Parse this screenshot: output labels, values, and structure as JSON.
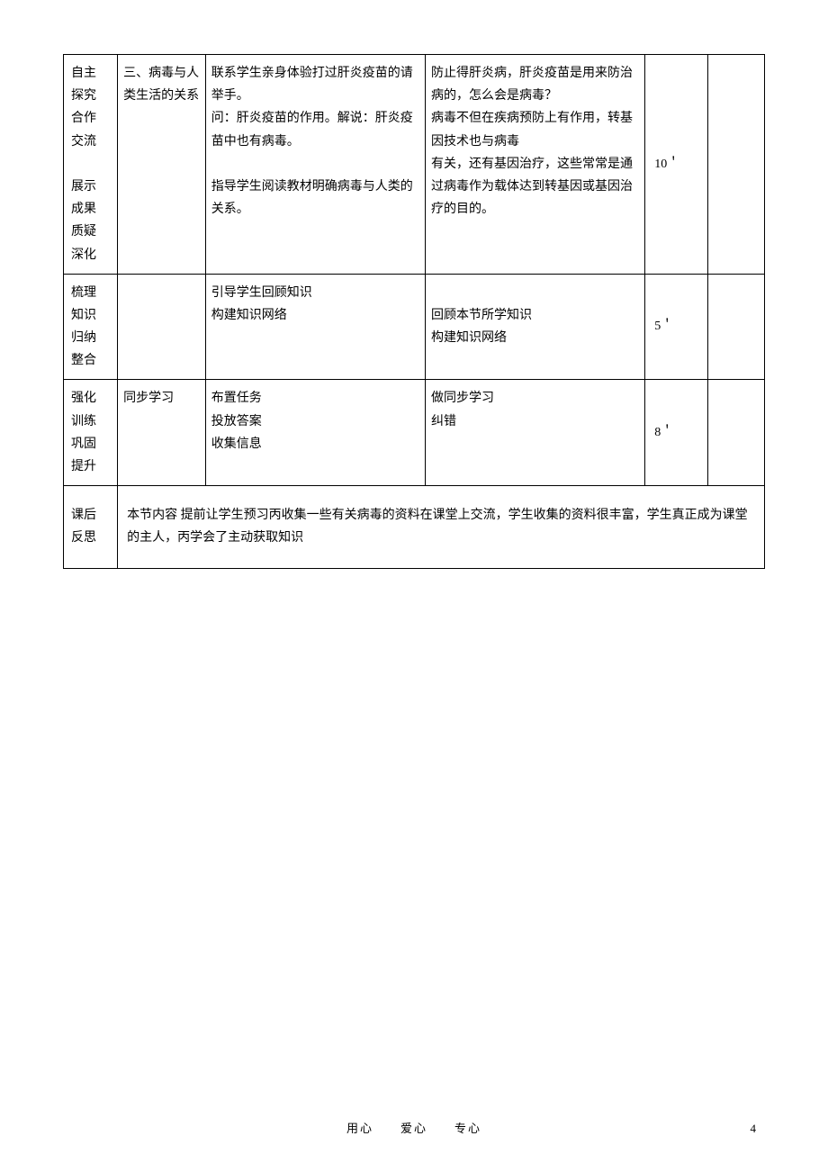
{
  "table": {
    "rows": [
      {
        "label_lines": [
          "自主",
          "探究",
          "合作",
          "交流",
          "",
          "展示",
          "成果",
          "质疑",
          "深化"
        ],
        "col2": "三、病毒与人类生活的关系",
        "col3": "联系学生亲身体验打过肝炎疫苗的请举手。\n问：肝炎疫苗的作用。解说：肝炎疫苗中也有病毒。\n\n指导学生阅读教材明确病毒与人类的关系。",
        "col4": "防止得肝炎病，肝炎疫苗是用来防治病的，怎么会是病毒？\n病毒不但在疾病预防上有作用，转基因技术也与病毒\n有关，还有基因治疗，这些常常是通过病毒作为载体达到转基因或基因治疗的目的。",
        "col5": "10＇",
        "col6": ""
      },
      {
        "label_lines": [
          "梳理",
          "知识",
          "归纳",
          "整合"
        ],
        "col2": "",
        "col3": "引导学生回顾知识\n构建知识网络",
        "col4": "\n回顾本节所学知识\n构建知识网络",
        "col5": "5＇",
        "col6": ""
      },
      {
        "label_lines": [
          "强化",
          "训练",
          "巩固",
          "提升"
        ],
        "col2": "同步学习",
        "col3": "布置任务\n投放答案\n收集信息",
        "col4": "做同步学习\n纠错",
        "col5": "8＇",
        "col6": ""
      }
    ],
    "reflection": {
      "label_lines": [
        "课后",
        "反思"
      ],
      "content": "本节内容 提前让学生预习丙收集一些有关病毒的资料在课堂上交流，学生收集的资料很丰富，学生真正成为课堂的主人，丙学会了主动获取知识"
    }
  },
  "footer": {
    "text": "用心　　爱心　　专心",
    "page": "4"
  }
}
